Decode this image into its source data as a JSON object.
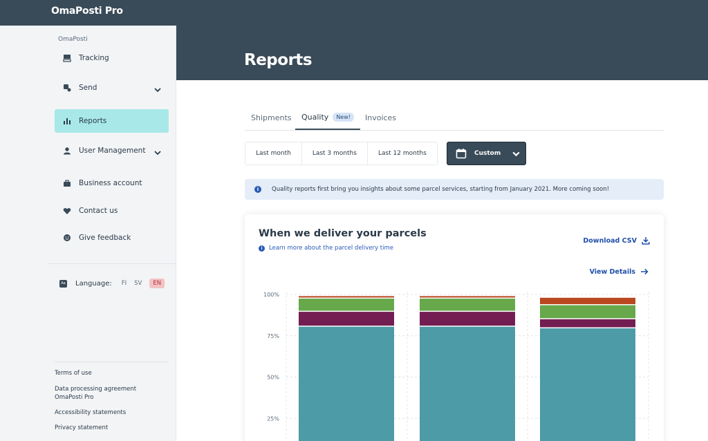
{
  "app": {
    "title": "OmaPosti Pro"
  },
  "page": {
    "title": "Reports"
  },
  "sidebar": {
    "section_label": "OmaPosti",
    "items": [
      {
        "label": "Tracking",
        "icon": "tracking-icon"
      },
      {
        "label": "Send",
        "icon": "send-icon"
      },
      {
        "label": "Reports",
        "icon": "reports-icon"
      },
      {
        "label": "User Management",
        "icon": "user-icon"
      },
      {
        "label": "Business account",
        "icon": "briefcase-icon"
      },
      {
        "label": "Contact us",
        "icon": "heart-icon"
      },
      {
        "label": "Give feedback",
        "icon": "smiley-icon"
      }
    ],
    "language": {
      "label": "Language:",
      "options": [
        "FI",
        "SV",
        "EN"
      ],
      "selected": "EN"
    },
    "footer_links": [
      "Terms of use",
      "Data processing agreement",
      "OmaPosti Pro",
      "Accessibility statements",
      "Privacy statement"
    ]
  },
  "tabs": [
    {
      "label": "Shipments"
    },
    {
      "label": "Quality",
      "badge": "New!"
    },
    {
      "label": "Invoices"
    }
  ],
  "periods": [
    "Last month",
    "Last 3 months",
    "Last 12 months"
  ],
  "custom": {
    "label": "Custom"
  },
  "info_banner": {
    "text": "Quality reports first bring you insights about some parcel services, starting from January 2021. More coming soon!"
  },
  "card": {
    "title": "When we deliver your parcels",
    "learn_more": "Learn more about the parcel delivery time",
    "download": "Download CSV",
    "view_details": "View Details"
  },
  "colors": {
    "teal": "#4e9ba8",
    "purple": "#731e52",
    "green": "#67a84b",
    "orange": "#b9471f",
    "brand_dark": "#394a58",
    "active_nav": "#a8e8e8"
  },
  "chart_data": {
    "type": "bar",
    "stacked": true,
    "y_ticks": [
      "100%",
      "75%",
      "50%",
      "25%"
    ],
    "ylim": [
      0,
      100
    ],
    "categories": [
      "",
      "",
      ""
    ],
    "series": [
      {
        "color": "#4e9ba8",
        "values": [
          80.5,
          80.5,
          79.5
        ]
      },
      {
        "color": "#731e52",
        "values": [
          9.0,
          9.0,
          5.5
        ]
      },
      {
        "color": "#67a84b",
        "values": [
          8.0,
          8.0,
          8.5
        ]
      },
      {
        "color": "#b9471f",
        "values": [
          1.5,
          1.5,
          4.5
        ]
      }
    ],
    "grid": true
  }
}
